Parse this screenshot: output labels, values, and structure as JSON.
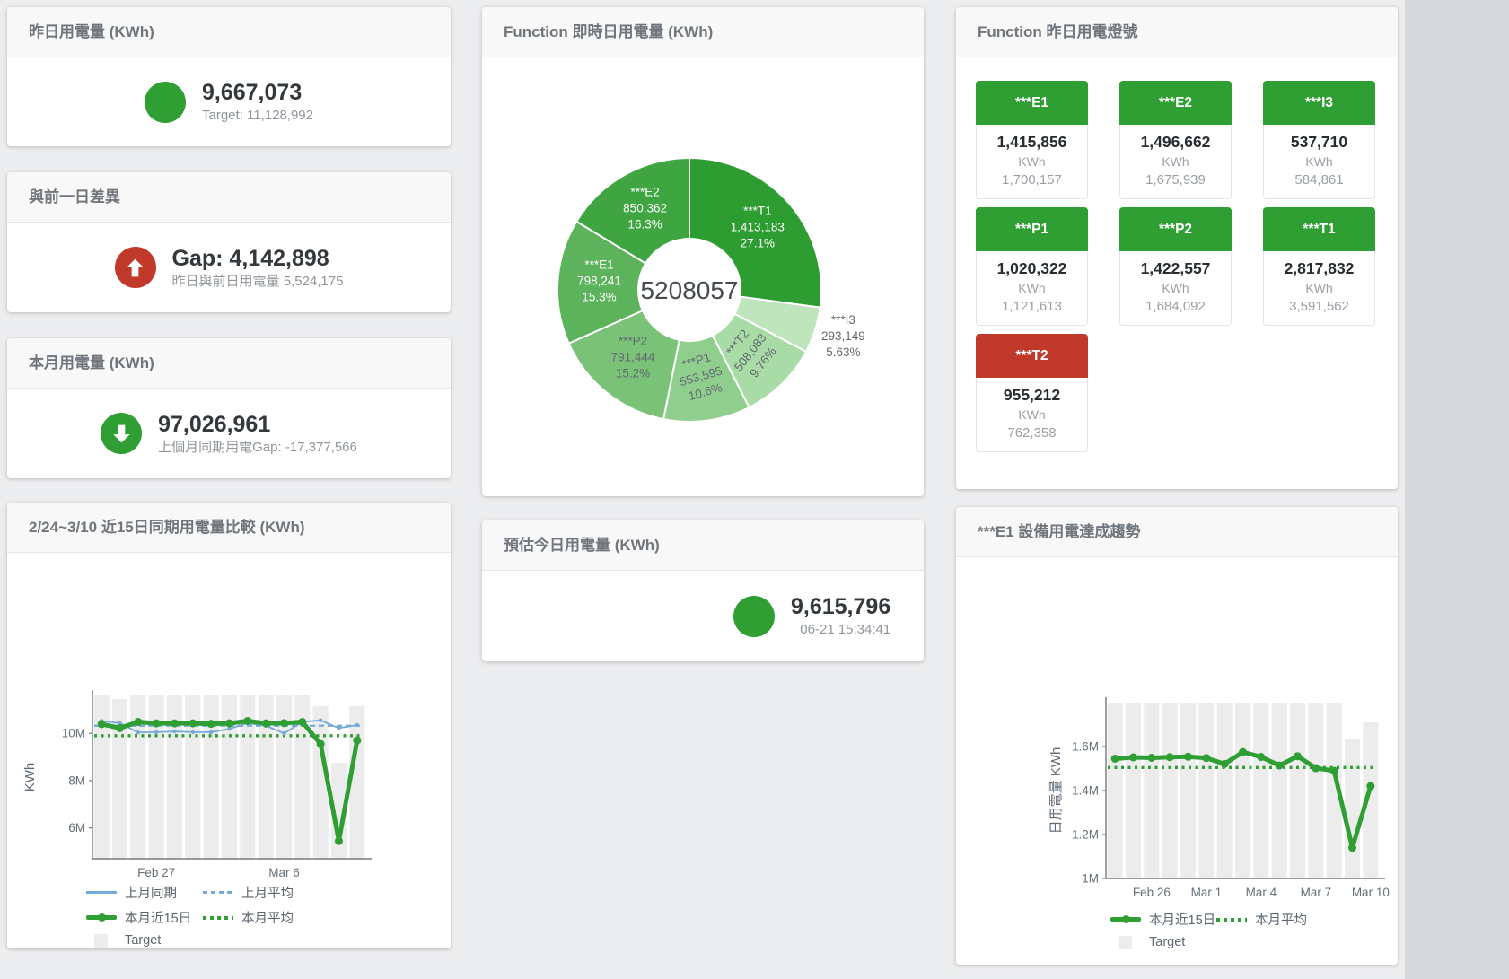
{
  "colors": {
    "green": "#2f9e33",
    "red": "#c0392b",
    "blue": "#74a9d8",
    "bar_grey": "#ececec"
  },
  "cards": {
    "yesterday": {
      "title": "昨日用電量 (KWh)",
      "value": "9,667,073",
      "subtitle": "Target: 11,128,992",
      "status": "green"
    },
    "day_gap": {
      "title": "與前一日差異",
      "value": "Gap: 4,142,898",
      "subtitle": "昨日與前日用電量 5,524,175",
      "status": "red",
      "direction": "up"
    },
    "month": {
      "title": "本月用電量 (KWh)",
      "value": "97,026,961",
      "subtitle": "上個月同期用電Gap: -17,377,566",
      "status": "green",
      "direction": "down"
    },
    "estimate": {
      "title": "預估今日用電量 (KWh)",
      "value": "9,615,796",
      "subtitle": "06-21 15:34:41",
      "status": "green"
    }
  },
  "lights": {
    "title": "Function 昨日用電燈號",
    "tiles": [
      {
        "label": "***E1",
        "value": "1,415,856",
        "unit": "KWh",
        "target": "1,700,157",
        "status": "green"
      },
      {
        "label": "***E2",
        "value": "1,496,662",
        "unit": "KWh",
        "target": "1,675,939",
        "status": "green"
      },
      {
        "label": "***I3",
        "value": "537,710",
        "unit": "KWh",
        "target": "584,861",
        "status": "green"
      },
      {
        "label": "***P1",
        "value": "1,020,322",
        "unit": "KWh",
        "target": "1,121,613",
        "status": "green"
      },
      {
        "label": "***P2",
        "value": "1,422,557",
        "unit": "KWh",
        "target": "1,684,092",
        "status": "green"
      },
      {
        "label": "***T1",
        "value": "2,817,832",
        "unit": "KWh",
        "target": "3,591,562",
        "status": "green"
      },
      {
        "label": "***T2",
        "value": "955,212",
        "unit": "KWh",
        "target": "762,358",
        "status": "red"
      }
    ]
  },
  "chart_data": [
    {
      "type": "pie",
      "title": "Function 即時日用電量 (KWh)",
      "center_label": "5208057",
      "unit": "KWh",
      "slices": [
        {
          "name": "***T1",
          "value": 1413183,
          "value_label": "1,413,183",
          "pct": "27.1%",
          "color": "#2e9d31",
          "label_color": "#ffffff"
        },
        {
          "name": "***I3",
          "value": 293149,
          "value_label": "293,149",
          "pct": "5.63%",
          "color": "#bfe5bd",
          "label_color": "#636a70",
          "outside": true
        },
        {
          "name": "***T2",
          "value": 508083,
          "value_label": "508,083",
          "pct": "9.76%",
          "color": "#a8dba6",
          "label_color": "#636a70",
          "rotate": -52
        },
        {
          "name": "***P1",
          "value": 553595,
          "value_label": "553,595",
          "pct": "10.6%",
          "color": "#90ce8e",
          "label_color": "#636a70",
          "rotate": -16
        },
        {
          "name": "***P2",
          "value": 791444,
          "value_label": "791,444",
          "pct": "15.2%",
          "color": "#79c277",
          "label_color": "#636a70"
        },
        {
          "name": "***E1",
          "value": 798241,
          "value_label": "798,241",
          "pct": "15.3%",
          "color": "#5cb35b",
          "label_color": "#ffffff"
        },
        {
          "name": "***E2",
          "value": 850362,
          "value_label": "850,362",
          "pct": "16.3%",
          "color": "#3fa541",
          "label_color": "#ffffff"
        }
      ]
    },
    {
      "type": "line",
      "title": "2/24~3/10 近15日同期用電量比較 (KWh)",
      "ylabel": "KWh",
      "values_unit": "million KWh",
      "ymin": 4.7,
      "ymax": 11.6,
      "x_count": 15,
      "yticks": [
        {
          "v": 6,
          "label": "6M"
        },
        {
          "v": 8,
          "label": "8M"
        },
        {
          "v": 10,
          "label": "10M"
        }
      ],
      "xticks": [
        {
          "i": 3,
          "label": "Feb 27"
        },
        {
          "i": 10,
          "label": "Mar 6"
        }
      ],
      "target": {
        "name": "Target",
        "color": "#ececec",
        "values": [
          11.6,
          11.45,
          11.6,
          11.6,
          11.6,
          11.6,
          11.6,
          11.6,
          11.6,
          11.6,
          11.6,
          11.6,
          11.15,
          8.75,
          11.15
        ]
      },
      "series": [
        {
          "name": "上月平均",
          "style": "dashed",
          "color": "#74a9d8",
          "value": 10.32
        },
        {
          "name": "本月平均",
          "style": "dotted",
          "color": "#2f9e33",
          "value": 9.9
        },
        {
          "name": "上月同期",
          "style": "solid",
          "color": "#74a9d8",
          "values": [
            10.52,
            10.43,
            10.04,
            10.05,
            10.08,
            10.05,
            10.05,
            10.19,
            10.43,
            10.32,
            10.0,
            10.48,
            10.55,
            10.22,
            10.35
          ]
        },
        {
          "name": "本月近15日",
          "style": "thick",
          "color": "#2f9e33",
          "values": [
            10.39,
            10.22,
            10.48,
            10.42,
            10.42,
            10.42,
            10.4,
            10.42,
            10.52,
            10.42,
            10.43,
            10.48,
            9.55,
            5.45,
            9.7
          ]
        }
      ],
      "legend_position": "bottom"
    },
    {
      "type": "line",
      "title": "***E1 設備用電達成趨勢",
      "ylabel": "日用電量 KWh",
      "values_unit": "million KWh",
      "ymin": 1.0,
      "ymax": 1.8,
      "x_count": 15,
      "yticks": [
        {
          "v": 1,
          "label": "1M"
        },
        {
          "v": 1.2,
          "label": "1.2M"
        },
        {
          "v": 1.4,
          "label": "1.4M"
        },
        {
          "v": 1.6,
          "label": "1.6M"
        }
      ],
      "xticks": [
        {
          "i": 2,
          "label": "Feb 26"
        },
        {
          "i": 5,
          "label": "Mar 1"
        },
        {
          "i": 8,
          "label": "Mar 4"
        },
        {
          "i": 11,
          "label": "Mar 7"
        },
        {
          "i": 14,
          "label": "Mar 10"
        }
      ],
      "target": {
        "name": "Target",
        "color": "#ececec",
        "values": [
          1.85,
          1.85,
          1.85,
          1.85,
          1.85,
          1.85,
          1.85,
          1.85,
          1.85,
          1.85,
          1.85,
          1.85,
          1.85,
          1.635,
          1.71
        ]
      },
      "series": [
        {
          "name": "本月平均",
          "style": "dotted",
          "color": "#2f9e33",
          "value": 1.505
        },
        {
          "name": "本月近15日",
          "style": "thick",
          "color": "#2f9e33",
          "values": [
            1.545,
            1.551,
            1.549,
            1.552,
            1.554,
            1.548,
            1.521,
            1.575,
            1.553,
            1.514,
            1.556,
            1.502,
            1.49,
            1.14,
            1.42
          ]
        }
      ],
      "legend_position": "bottom"
    }
  ]
}
